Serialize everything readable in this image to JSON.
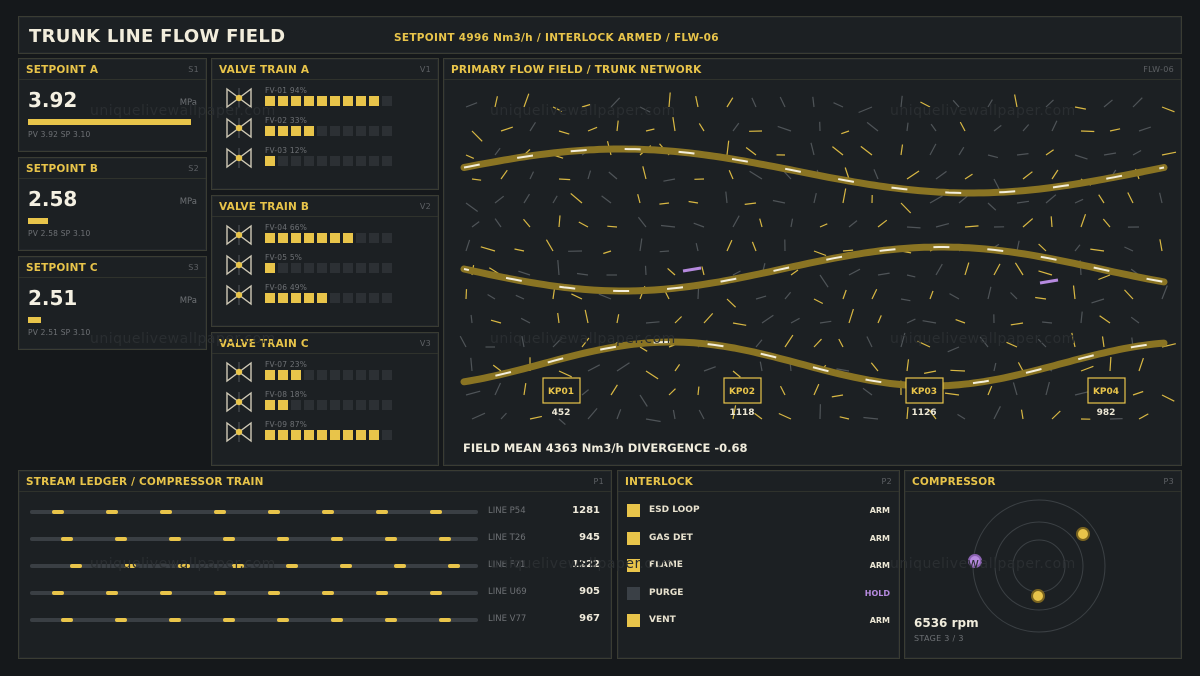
{
  "header": {
    "title": "TRUNK LINE FLOW FIELD",
    "status": "SETPOINT 4996 Nm3/h / INTERLOCK ARMED / FLW-06"
  },
  "watermark": "uniquelivewallpaper.com",
  "setpoints": [
    {
      "title": "SETPOINT A",
      "tag": "S1",
      "value": "3.92",
      "unit": "MPa",
      "fill": 1.0,
      "footer": "PV 3.92  SP 3.10"
    },
    {
      "title": "SETPOINT B",
      "tag": "S2",
      "value": "2.58",
      "unit": "MPa",
      "fill": 0.12,
      "footer": "PV 2.58  SP 3.10"
    },
    {
      "title": "SETPOINT C",
      "tag": "S3",
      "value": "2.51",
      "unit": "MPa",
      "fill": 0.08,
      "footer": "PV 2.51  SP 3.10"
    }
  ],
  "valve_trains": [
    {
      "title": "VALVE TRAIN A",
      "tag": "V1",
      "valves": [
        {
          "label": "FV-01 94%",
          "segments": 9
        },
        {
          "label": "FV-02 33%",
          "segments": 4
        },
        {
          "label": "FV-03 12%",
          "segments": 1
        }
      ]
    },
    {
      "title": "VALVE TRAIN B",
      "tag": "V2",
      "valves": [
        {
          "label": "FV-04 66%",
          "segments": 7
        },
        {
          "label": "FV-05 5%",
          "segments": 1
        },
        {
          "label": "FV-06 49%",
          "segments": 5
        }
      ]
    },
    {
      "title": "VALVE TRAIN C",
      "tag": "V3",
      "valves": [
        {
          "label": "FV-07 23%",
          "segments": 3
        },
        {
          "label": "FV-08 18%",
          "segments": 2
        },
        {
          "label": "FV-09 87%",
          "segments": 9
        }
      ]
    }
  ],
  "flow": {
    "title": "PRIMARY FLOW FIELD / TRUNK NETWORK",
    "tag": "FLW-06",
    "stats": "FIELD MEAN 4363 Nm3/h   DIVERGENCE -0.68",
    "kps": [
      {
        "label": "KP01",
        "value": "452"
      },
      {
        "label": "KP02",
        "value": "1118"
      },
      {
        "label": "KP03",
        "value": "1126"
      },
      {
        "label": "KP04",
        "value": "982"
      }
    ]
  },
  "ledger": {
    "title": "STREAM LEDGER / COMPRESSOR TRAIN",
    "tag": "P1",
    "rows": [
      {
        "name": "LINE P54",
        "value": "1281"
      },
      {
        "name": "LINE T26",
        "value": "945"
      },
      {
        "name": "LINE F71",
        "value": "1222"
      },
      {
        "name": "LINE U69",
        "value": "905"
      },
      {
        "name": "LINE V77",
        "value": "967"
      }
    ]
  },
  "interlock": {
    "title": "INTERLOCK",
    "tag": "P2",
    "rows": [
      {
        "name": "ESD LOOP",
        "state": "ARM",
        "on": true
      },
      {
        "name": "GAS DET",
        "state": "ARM",
        "on": true
      },
      {
        "name": "FLAME",
        "state": "ARM",
        "on": true
      },
      {
        "name": "PURGE",
        "state": "HOLD",
        "on": false
      },
      {
        "name": "VENT",
        "state": "ARM",
        "on": true
      }
    ]
  },
  "compressor": {
    "title": "COMPRESSOR",
    "tag": "P3",
    "rpm": "6536 rpm",
    "stage": "STAGE 3 / 3"
  },
  "colors": {
    "accent": "#e8c44a",
    "pipe": "#8a7423",
    "hold": "#b68adf",
    "panel": "#1c2023"
  }
}
